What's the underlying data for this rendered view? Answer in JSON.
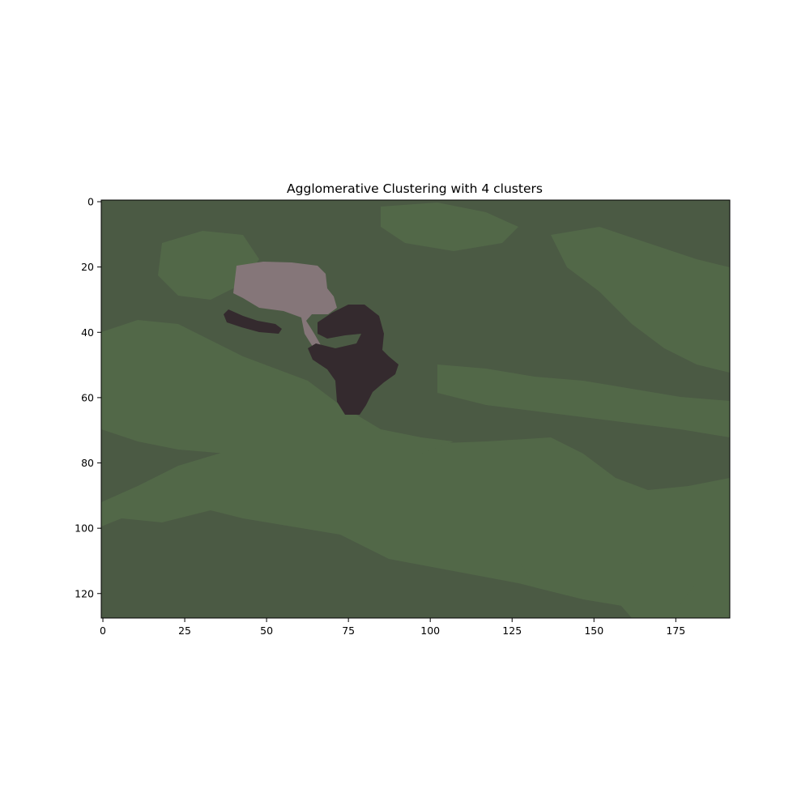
{
  "chart_data": {
    "type": "heatmap",
    "title": "Agglomerative Clustering with 4 clusters",
    "xlabel": "",
    "ylabel": "",
    "xlim": [
      -0.5,
      191.5
    ],
    "ylim": [
      127.5,
      -0.5
    ],
    "x_ticks": [
      0,
      25,
      50,
      75,
      100,
      125,
      150,
      175
    ],
    "y_ticks": [
      0,
      20,
      40,
      60,
      80,
      100,
      120
    ],
    "clusters": 4,
    "cluster_colors": {
      "background_dark_green": "#4b5a44",
      "background_light_green": "#526848",
      "dark_blob": "#342a2e",
      "pink_blob": "#857679"
    },
    "grid": false,
    "legend": "none"
  }
}
